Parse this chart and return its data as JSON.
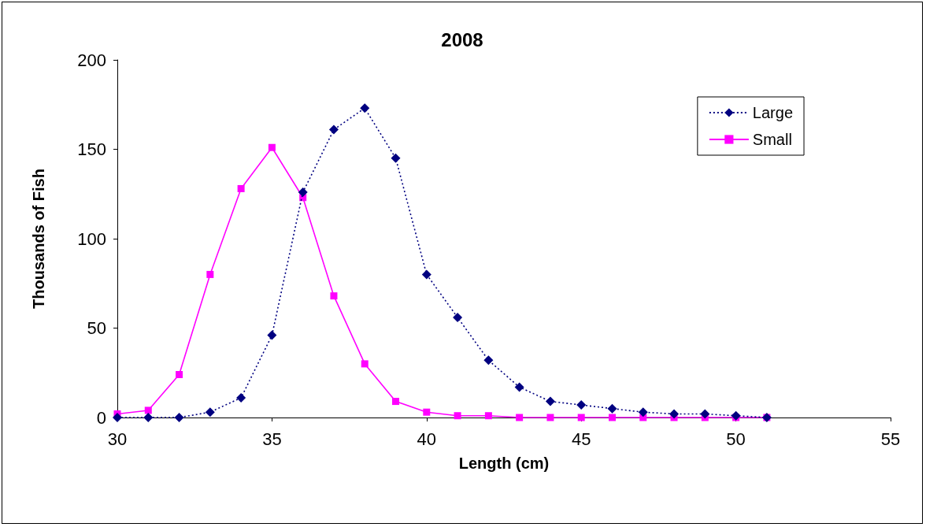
{
  "chart_data": {
    "type": "line",
    "title": "2008",
    "xlabel": "Length (cm)",
    "ylabel": "Thousands of Fish",
    "x": [
      30,
      31,
      32,
      33,
      34,
      35,
      36,
      37,
      38,
      39,
      40,
      41,
      42,
      43,
      44,
      45,
      46,
      47,
      48,
      49,
      50,
      51
    ],
    "series": [
      {
        "name": "Large",
        "color": "#000080",
        "marker": "diamond",
        "line_style": "dotted",
        "values": [
          0,
          0,
          0,
          3,
          11,
          46,
          126,
          161,
          173,
          145,
          80,
          56,
          32,
          17,
          9,
          7,
          5,
          3,
          2,
          2,
          1,
          0
        ]
      },
      {
        "name": "Small",
        "color": "#ff00ff",
        "marker": "square",
        "line_style": "solid",
        "values": [
          2,
          4,
          24,
          80,
          128,
          151,
          123,
          68,
          30,
          9,
          3,
          1,
          1,
          0,
          0,
          0,
          0,
          0,
          0,
          0,
          0,
          0
        ]
      }
    ],
    "xlim": [
      30,
      55
    ],
    "xticks": [
      30,
      35,
      40,
      45,
      50,
      55
    ],
    "ylim": [
      0,
      200
    ],
    "yticks": [
      0,
      50,
      100,
      150,
      200
    ],
    "grid": false,
    "legend": "top right"
  }
}
